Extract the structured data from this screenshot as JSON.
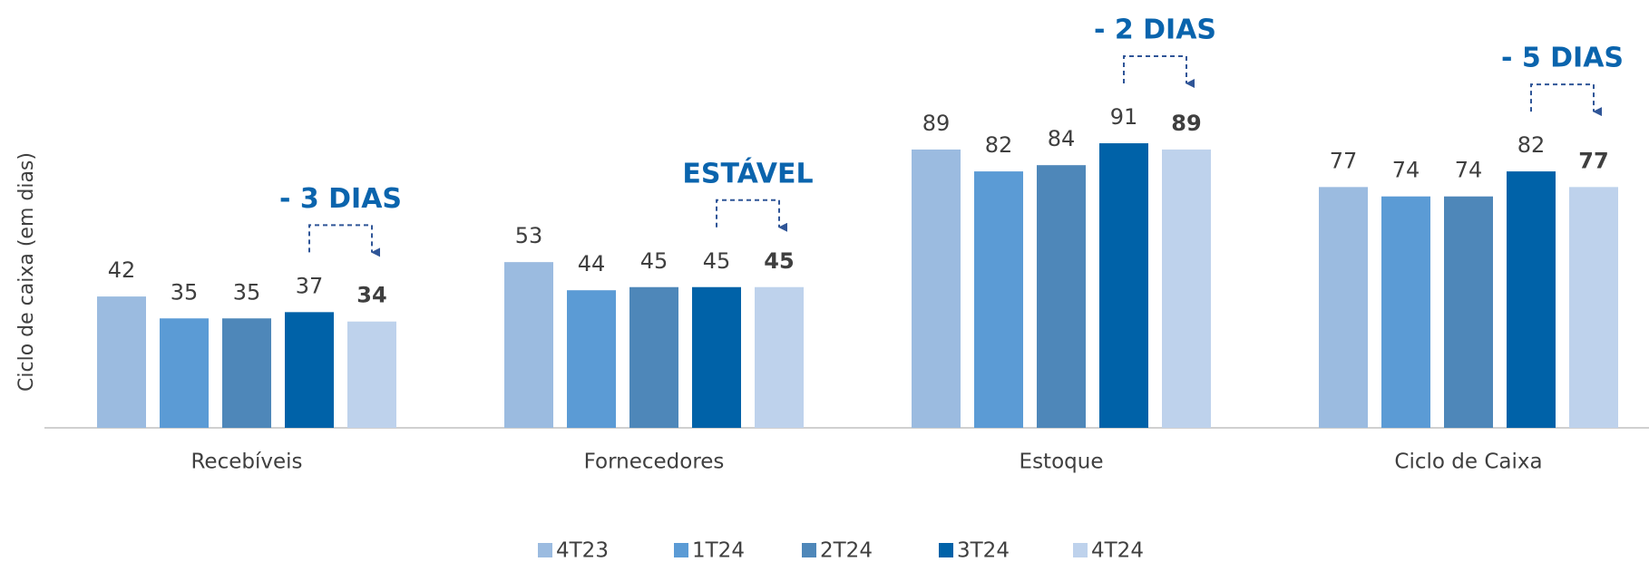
{
  "chart_data": {
    "type": "bar",
    "y_label": "Ciclo de caixa (em dias)",
    "categories": [
      "Recebíveis",
      "Fornecedores",
      "Estoque",
      "Ciclo de Caixa"
    ],
    "series": [
      {
        "name": "4T23",
        "color": "#9bbbe0",
        "values": [
          42,
          53,
          89,
          77
        ]
      },
      {
        "name": "1T24",
        "color": "#5b9bd5",
        "values": [
          35,
          44,
          82,
          74
        ]
      },
      {
        "name": "2T24",
        "color": "#4e87b9",
        "values": [
          35,
          45,
          84,
          74
        ]
      },
      {
        "name": "3T24",
        "color": "#0062a8",
        "values": [
          37,
          45,
          91,
          82
        ]
      },
      {
        "name": "4T24",
        "color": "#bed2ec",
        "values": [
          34,
          45,
          89,
          77
        ]
      }
    ],
    "annotations": [
      "- 3 DIAS",
      "ESTÁVEL",
      "- 2 DIAS",
      "- 5 DIAS"
    ],
    "ylim": [
      0,
      100
    ]
  }
}
